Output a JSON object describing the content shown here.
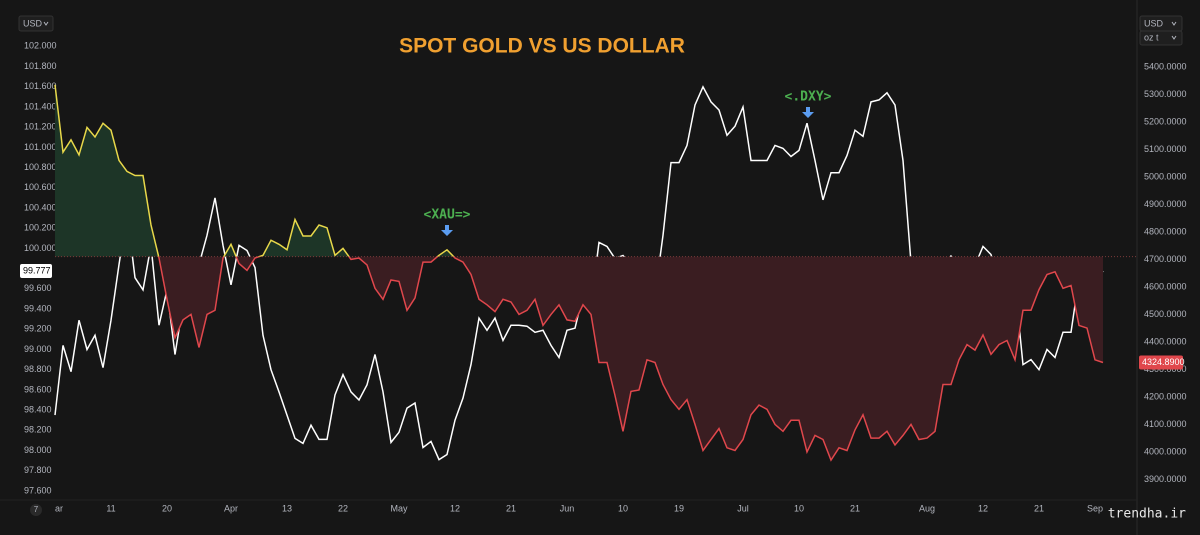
{
  "chart_data": {
    "type": "line",
    "title": "SPOT GOLD VS US DOLLAR",
    "axis_units": {
      "left": "USD",
      "right": "USD",
      "right_unit": "oz t"
    },
    "x": [
      0,
      1,
      2,
      3,
      4,
      5,
      6,
      7,
      8,
      9,
      10,
      11,
      12,
      13,
      14,
      15,
      16,
      17,
      18,
      19,
      20,
      21,
      22,
      23,
      24,
      25,
      26,
      27,
      28,
      29,
      30,
      31,
      32,
      33,
      34,
      35,
      36,
      37,
      38,
      39,
      40,
      41,
      42,
      43,
      44,
      45,
      46,
      47,
      48,
      49,
      50,
      51,
      52,
      53,
      54,
      55,
      56,
      57,
      58,
      59,
      60,
      61,
      62,
      63,
      64,
      65,
      66,
      67,
      68,
      69,
      70,
      71,
      72,
      73,
      74,
      75,
      76,
      77,
      78,
      79,
      80,
      81,
      82,
      83,
      84,
      85,
      86,
      87,
      88,
      89,
      90,
      91,
      92,
      93,
      94,
      95,
      96,
      97,
      98,
      99,
      100,
      101,
      102,
      103,
      104,
      105,
      106,
      107,
      108,
      109,
      110,
      111,
      112,
      113,
      114,
      115,
      116,
      117,
      118,
      119,
      120,
      121,
      122,
      123,
      124,
      125,
      126,
      127,
      128,
      129,
      130,
      131
    ],
    "xlim": [
      0,
      131
    ],
    "xticks": [
      {
        "value": 0,
        "label": "ar"
      },
      {
        "value": 7,
        "label": "11"
      },
      {
        "value": 14,
        "label": "20"
      },
      {
        "value": 22,
        "label": "Apr"
      },
      {
        "value": 29,
        "label": "13"
      },
      {
        "value": 36,
        "label": "22"
      },
      {
        "value": 43,
        "label": "May"
      },
      {
        "value": 50,
        "label": "12"
      },
      {
        "value": 57,
        "label": "21"
      },
      {
        "value": 64,
        "label": "Jun"
      },
      {
        "value": 71,
        "label": "10"
      },
      {
        "value": 78,
        "label": "19"
      },
      {
        "value": 86,
        "label": "Jul"
      },
      {
        "value": 93,
        "label": "10"
      },
      {
        "value": 100,
        "label": "21"
      },
      {
        "value": 109,
        "label": "Aug"
      },
      {
        "value": 116,
        "label": "12"
      },
      {
        "value": 123,
        "label": "21"
      },
      {
        "value": 130,
        "label": "Sep"
      }
    ],
    "ylim": [
      97.51,
      102.36
    ],
    "yticks": [
      {
        "value": 97.6,
        "label": "97.600"
      },
      {
        "value": 97.8,
        "label": "97.800"
      },
      {
        "value": 98.0,
        "label": "98.000"
      },
      {
        "value": 98.2,
        "label": "98.200"
      },
      {
        "value": 98.4,
        "label": "98.400"
      },
      {
        "value": 98.6,
        "label": "98.600"
      },
      {
        "value": 98.8,
        "label": "98.800"
      },
      {
        "value": 99.0,
        "label": "99.000"
      },
      {
        "value": 99.2,
        "label": "99.200"
      },
      {
        "value": 99.4,
        "label": "99.400"
      },
      {
        "value": 99.6,
        "label": "99.600"
      },
      {
        "value": 99.8,
        "label": "99.800"
      },
      {
        "value": 100.0,
        "label": "100.000"
      },
      {
        "value": 100.2,
        "label": "100.200"
      },
      {
        "value": 100.4,
        "label": "100.400"
      },
      {
        "value": 100.6,
        "label": "100.600"
      },
      {
        "value": 100.8,
        "label": "100.800"
      },
      {
        "value": 101.0,
        "label": "101.000"
      },
      {
        "value": 101.2,
        "label": "101.200"
      },
      {
        "value": 101.4,
        "label": "101.400"
      },
      {
        "value": 101.6,
        "label": "101.600"
      },
      {
        "value": 101.8,
        "label": "101.800"
      },
      {
        "value": 102.0,
        "label": "102.000"
      }
    ],
    "y2lim": [
      3825,
      5607
    ],
    "y2ticks": [
      {
        "value": 3900,
        "label": "3900.0000"
      },
      {
        "value": 4000,
        "label": "4000.0000"
      },
      {
        "value": 4100,
        "label": "4100.0000"
      },
      {
        "value": 4200,
        "label": "4200.0000"
      },
      {
        "value": 4300,
        "label": "4300.0000"
      },
      {
        "value": 4400,
        "label": "4400.0000"
      },
      {
        "value": 4500,
        "label": "4500.0000"
      },
      {
        "value": 4600,
        "label": "4600.0000"
      },
      {
        "value": 4700,
        "label": "4700.0000"
      },
      {
        "value": 4800,
        "label": "4800.0000"
      },
      {
        "value": 4900,
        "label": "4900.0000"
      },
      {
        "value": 5000,
        "label": "5000.0000"
      },
      {
        "value": 5100,
        "label": "5100.0000"
      },
      {
        "value": 5200,
        "label": "5200.0000"
      },
      {
        "value": 5300,
        "label": "5300.0000"
      },
      {
        "value": 5400,
        "label": "5400.0000"
      }
    ],
    "grid": false,
    "series": [
      {
        "color": "#ffffff",
        "last_value_label": "99.777",
        "tag_color": "#ffffff",
        "values": [
          98.35,
          99.04,
          98.78,
          99.29,
          99.0,
          99.14,
          98.82,
          99.29,
          99.84,
          100.36,
          99.71,
          99.59,
          100.03,
          99.24,
          99.59,
          98.95,
          99.44,
          99.59,
          99.84,
          100.13,
          100.5,
          100.03,
          99.64,
          100.03,
          99.98,
          99.81,
          99.14,
          98.8,
          98.58,
          98.35,
          98.12,
          98.07,
          98.25,
          98.11,
          98.11,
          98.55,
          98.75,
          98.58,
          98.5,
          98.65,
          98.95,
          98.58,
          98.08,
          98.18,
          98.42,
          98.47,
          98.03,
          98.09,
          97.91,
          97.96,
          98.3,
          98.52,
          98.85,
          99.31,
          99.19,
          99.31,
          99.09,
          99.24,
          99.24,
          99.23,
          99.17,
          99.19,
          99.04,
          98.92,
          99.19,
          99.21,
          99.54,
          99.44,
          100.06,
          100.02,
          99.9,
          99.93,
          99.84,
          99.74,
          99.64,
          99.54,
          100.13,
          100.85,
          100.85,
          101.02,
          101.42,
          101.6,
          101.45,
          101.37,
          101.12,
          101.21,
          101.4,
          100.87,
          100.87,
          100.87,
          101.02,
          100.99,
          100.91,
          100.97,
          101.24,
          100.87,
          100.48,
          100.75,
          100.75,
          100.92,
          101.17,
          101.11,
          101.45,
          101.47,
          101.54,
          101.42,
          100.87,
          99.86,
          99.9,
          99.88,
          99.84,
          99.67,
          99.93,
          99.54,
          99.81,
          99.83,
          100.02,
          99.94,
          99.67,
          99.64,
          99.64,
          98.85,
          98.9,
          98.8,
          99.0,
          98.92,
          99.17,
          99.17,
          99.71,
          99.42,
          99.67,
          99.777
        ]
      },
      {
        "axis": "y2",
        "color": "#e8d84a",
        "color_below": "#e0474c",
        "fill_above": "#1d3527",
        "fill_below": "#3a1d21",
        "baseline": 4710,
        "last_value_label": "4324.8900",
        "tag_color": "#e0474c",
        "values": [
          5335,
          5090,
          5135,
          5080,
          5180,
          5145,
          5195,
          5170,
          5060,
          5020,
          5005,
          5005,
          4825,
          4705,
          4555,
          4415,
          4480,
          4500,
          4380,
          4500,
          4515,
          4705,
          4755,
          4685,
          4660,
          4705,
          4715,
          4770,
          4755,
          4735,
          4845,
          4785,
          4785,
          4825,
          4815,
          4715,
          4740,
          4700,
          4705,
          4680,
          4595,
          4555,
          4625,
          4620,
          4515,
          4560,
          4690,
          4690,
          4715,
          4735,
          4705,
          4690,
          4645,
          4555,
          4535,
          4510,
          4555,
          4545,
          4500,
          4515,
          4555,
          4460,
          4500,
          4535,
          4480,
          4475,
          4535,
          4500,
          4325,
          4325,
          4205,
          4075,
          4220,
          4225,
          4335,
          4325,
          4245,
          4190,
          4155,
          4190,
          4100,
          4005,
          4045,
          4085,
          4015,
          4005,
          4045,
          4135,
          4170,
          4155,
          4100,
          4075,
          4115,
          4115,
          4000,
          4060,
          4045,
          3970,
          4015,
          4005,
          4080,
          4135,
          4050,
          4050,
          4075,
          4025,
          4060,
          4100,
          4045,
          4050,
          4075,
          4245,
          4245,
          4335,
          4390,
          4370,
          4425,
          4355,
          4390,
          4405,
          4335,
          4515,
          4515,
          4590,
          4645,
          4655,
          4595,
          4605,
          4460,
          4450,
          4335,
          4324.89
        ]
      }
    ],
    "annotations": [
      "<XAU=>",
      "<.DXY>"
    ],
    "footer": {
      "logo": "7",
      "watermark": "trendha.ir"
    }
  }
}
